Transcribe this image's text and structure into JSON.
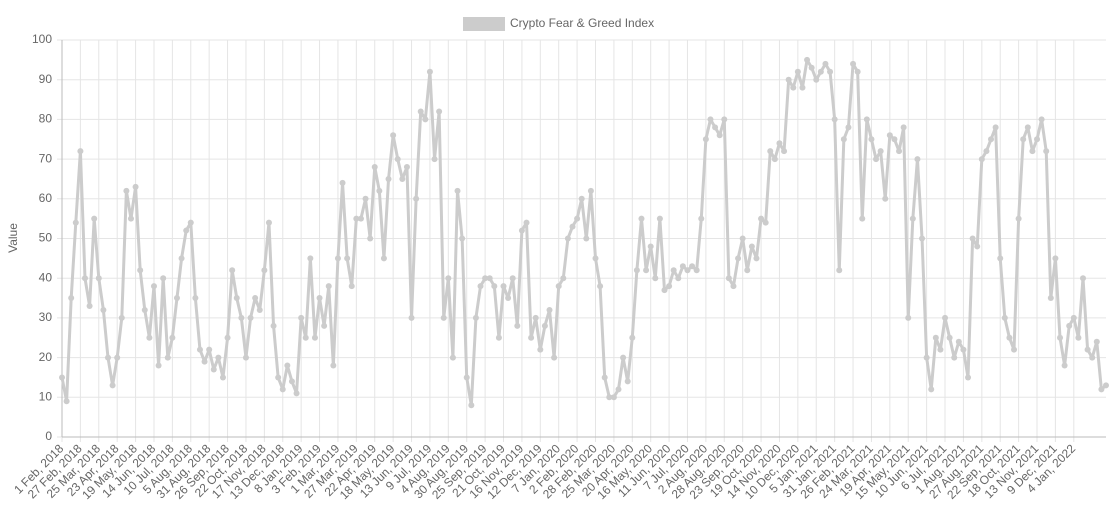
{
  "chart_data": {
    "type": "line",
    "y_label": "Value",
    "color": "#cccccc",
    "grid": true,
    "legend": "top",
    "ylim": [
      0,
      100
    ],
    "yticks": [
      0,
      10,
      20,
      30,
      40,
      50,
      60,
      70,
      80,
      90,
      100
    ],
    "categories": [
      "1 Feb, 2018",
      null,
      null,
      null,
      "27 Feb, 2018",
      null,
      null,
      null,
      "25 Mar, 2018",
      null,
      null,
      null,
      "23 Apr, 2018",
      null,
      null,
      null,
      "19 May, 2018",
      null,
      null,
      null,
      "14 Jun, 2018",
      null,
      null,
      null,
      "10 Jul, 2018",
      null,
      null,
      null,
      "5 Aug, 2018",
      null,
      null,
      null,
      "31 Aug, 2018",
      null,
      null,
      null,
      "26 Sep, 2018",
      null,
      null,
      null,
      "22 Oct, 2018",
      null,
      null,
      null,
      "17 Nov, 2018",
      null,
      null,
      null,
      "13 Dec, 2018",
      null,
      null,
      null,
      "8 Jan, 2019",
      null,
      null,
      null,
      "3 Feb, 2019",
      null,
      null,
      null,
      "1 Mar, 2019",
      null,
      null,
      null,
      "27 Mar, 2019",
      null,
      null,
      null,
      "22 Apr, 2019",
      null,
      null,
      null,
      "18 May, 2019",
      null,
      null,
      null,
      "13 Jun, 2019",
      null,
      null,
      null,
      "9 Jul, 2019",
      null,
      null,
      null,
      "4 Aug, 2019",
      null,
      null,
      null,
      "30 Aug, 2019",
      null,
      null,
      null,
      "25 Sep, 2019",
      null,
      null,
      null,
      "21 Oct, 2019",
      null,
      null,
      null,
      "16 Nov, 2019",
      null,
      null,
      null,
      "12 Dec, 2019",
      null,
      null,
      null,
      "7 Jan, 2020",
      null,
      null,
      null,
      "2 Feb, 2020",
      null,
      null,
      null,
      "28 Feb, 2020",
      null,
      null,
      null,
      "25 Mar, 2020",
      null,
      null,
      null,
      "20 Apr, 2020",
      null,
      null,
      null,
      "16 May, 2020",
      null,
      null,
      null,
      "11 Jun, 2020",
      null,
      null,
      null,
      "7 Jul, 2020",
      null,
      null,
      null,
      "2 Aug, 2020",
      null,
      null,
      null,
      "28 Aug, 2020",
      null,
      null,
      null,
      "23 Sep, 2020",
      null,
      null,
      null,
      "19 Oct, 2020",
      null,
      null,
      null,
      "14 Nov, 2020",
      null,
      null,
      null,
      "10 Dec, 2020",
      null,
      null,
      null,
      "5 Jan, 2021",
      null,
      null,
      null,
      "31 Jan, 2021",
      null,
      null,
      null,
      "26 Feb, 2021",
      null,
      null,
      null,
      "24 Mar, 2021",
      null,
      null,
      null,
      "19 Apr, 2021",
      null,
      null,
      null,
      "15 May, 2021",
      null,
      null,
      null,
      "10 Jun, 2021",
      null,
      null,
      null,
      "6 Jul, 2021",
      null,
      null,
      null,
      "1 Aug, 2021",
      null,
      null,
      null,
      "27 Aug, 2021",
      null,
      null,
      null,
      "22 Sep, 2021",
      null,
      null,
      null,
      "18 Oct, 2021",
      null,
      null,
      null,
      "13 Nov, 2021",
      null,
      null,
      null,
      "9 Dec, 2021",
      null,
      null,
      null,
      "4 Jan, 2022",
      null,
      null,
      null,
      null,
      null,
      null,
      null
    ],
    "series": [
      {
        "name": "Crypto Fear & Greed Index",
        "color": "#cccccc",
        "values": [
          15,
          9,
          35,
          54,
          72,
          40,
          33,
          55,
          40,
          32,
          20,
          13,
          20,
          30,
          62,
          55,
          63,
          42,
          32,
          25,
          38,
          18,
          40,
          20,
          25,
          35,
          45,
          52,
          54,
          35,
          22,
          19,
          22,
          17,
          20,
          15,
          25,
          42,
          35,
          30,
          20,
          30,
          35,
          32,
          42,
          54,
          28,
          15,
          12,
          18,
          14,
          11,
          30,
          25,
          45,
          25,
          35,
          28,
          38,
          18,
          45,
          64,
          45,
          38,
          55,
          55,
          60,
          50,
          68,
          62,
          45,
          65,
          76,
          70,
          65,
          68,
          30,
          60,
          82,
          80,
          92,
          70,
          82,
          30,
          40,
          20,
          62,
          50,
          15,
          8,
          30,
          38,
          40,
          40,
          38,
          25,
          38,
          35,
          40,
          28,
          52,
          54,
          25,
          30,
          22,
          28,
          32,
          20,
          38,
          40,
          50,
          53,
          55,
          60,
          50,
          62,
          45,
          38,
          15,
          10,
          10,
          12,
          20,
          14,
          25,
          42,
          55,
          42,
          48,
          40,
          55,
          37,
          38,
          42,
          40,
          43,
          42,
          43,
          42,
          55,
          75,
          80,
          78,
          76,
          80,
          40,
          38,
          45,
          50,
          42,
          48,
          45,
          55,
          54,
          72,
          70,
          74,
          72,
          90,
          88,
          92,
          88,
          95,
          93,
          90,
          92,
          94,
          92,
          80,
          42,
          75,
          78,
          94,
          92,
          55,
          80,
          75,
          70,
          72,
          60,
          76,
          75,
          72,
          78,
          30,
          55,
          70,
          50,
          20,
          12,
          25,
          22,
          30,
          25,
          20,
          24,
          22,
          15,
          50,
          48,
          70,
          72,
          75,
          78,
          45,
          30,
          25,
          22,
          55,
          75,
          78,
          72,
          75,
          80,
          72,
          35,
          45,
          25,
          18,
          28,
          30,
          25,
          40,
          22,
          20,
          24,
          12,
          13
        ]
      }
    ]
  }
}
